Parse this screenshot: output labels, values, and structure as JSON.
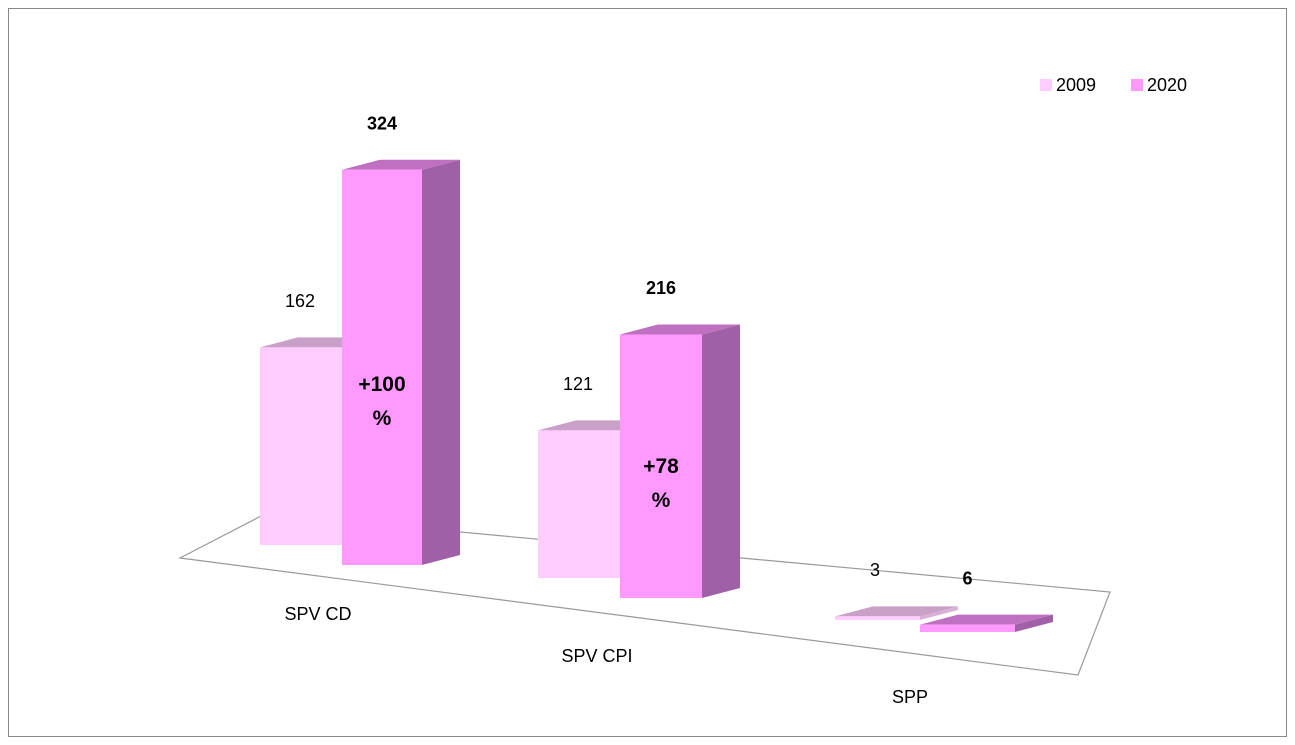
{
  "chart_data": {
    "type": "bar3d",
    "categories": [
      "SPV CD",
      "SPV CPI",
      "SPP"
    ],
    "series": [
      {
        "name": "2009",
        "color": "#ffccff",
        "values": [
          162,
          121,
          3
        ]
      },
      {
        "name": "2020",
        "color": "#ff99ff",
        "values": [
          324,
          216,
          6
        ]
      }
    ],
    "annotations": [
      "+100 %",
      "+78 %"
    ],
    "legend": "top-right"
  }
}
